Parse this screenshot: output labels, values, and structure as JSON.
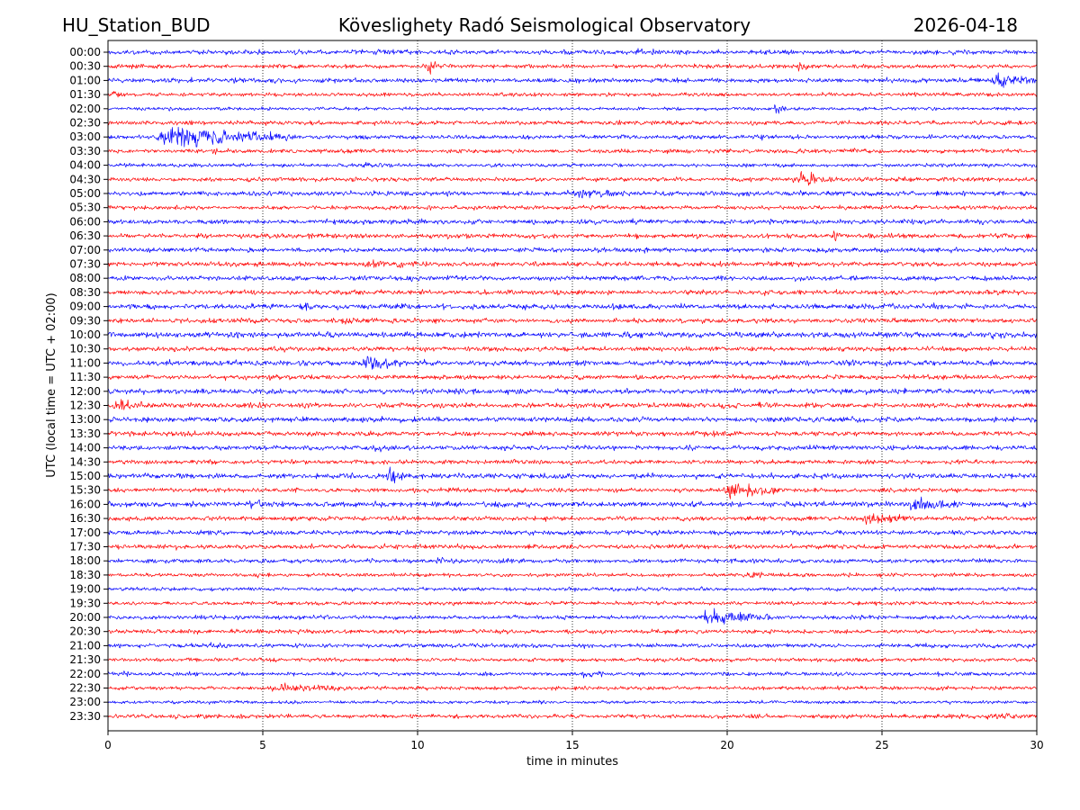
{
  "chart_data": {
    "type": "line",
    "title_left": "HU_Station_BUD",
    "title_center": "Köveslighety Radó Seismological Observatory",
    "title_right": "2026-04-18",
    "xlabel": "time in minutes",
    "ylabel": "UTC (local time = UTC + 02:00)",
    "xlim": [
      0,
      30
    ],
    "x_ticks": [
      0,
      5,
      10,
      15,
      20,
      25,
      30
    ],
    "grid": "vertical dotted",
    "trace_colors": [
      "#0000ff",
      "#ff0000"
    ],
    "rows": [
      "00:00",
      "00:30",
      "01:00",
      "01:30",
      "02:00",
      "02:30",
      "03:00",
      "03:30",
      "04:00",
      "04:30",
      "05:00",
      "05:30",
      "06:00",
      "06:30",
      "07:00",
      "07:30",
      "08:00",
      "08:30",
      "09:00",
      "09:30",
      "10:00",
      "10:30",
      "11:00",
      "11:30",
      "12:00",
      "12:30",
      "13:00",
      "13:30",
      "14:00",
      "14:30",
      "15:00",
      "15:30",
      "16:00",
      "16:30",
      "17:00",
      "17:30",
      "18:00",
      "18:30",
      "19:00",
      "19:30",
      "20:00",
      "20:30",
      "21:00",
      "21:30",
      "22:00",
      "22:30",
      "23:00",
      "23:30"
    ],
    "base_amplitude": [
      1.0,
      0.9,
      1.0,
      0.8,
      0.7,
      0.9,
      0.9,
      0.9,
      0.8,
      0.9,
      1.0,
      0.9,
      1.0,
      1.0,
      1.0,
      1.0,
      1.0,
      1.0,
      1.1,
      1.0,
      1.2,
      1.0,
      1.1,
      1.0,
      1.1,
      1.1,
      1.1,
      1.0,
      1.0,
      0.9,
      1.1,
      0.9,
      1.1,
      1.0,
      1.0,
      1.0,
      0.9,
      0.8,
      0.8,
      0.8,
      0.9,
      0.9,
      0.9,
      0.8,
      0.8,
      0.8,
      0.7,
      0.9
    ],
    "events": [
      {
        "row": "00:00",
        "start": 8.5,
        "duration": 1.0,
        "amplitude": 2.0
      },
      {
        "row": "00:00",
        "start": 17.0,
        "duration": 0.8,
        "amplitude": 2.0
      },
      {
        "row": "00:30",
        "start": 10.3,
        "duration": 0.3,
        "amplitude": 5.0
      },
      {
        "row": "00:30",
        "start": 22.2,
        "duration": 0.8,
        "amplitude": 2.2
      },
      {
        "row": "01:00",
        "start": 28.5,
        "duration": 1.5,
        "amplitude": 4.0
      },
      {
        "row": "01:30",
        "start": 0.1,
        "duration": 0.5,
        "amplitude": 1.8
      },
      {
        "row": "02:00",
        "start": 21.5,
        "duration": 0.5,
        "amplitude": 3.5
      },
      {
        "row": "03:00",
        "start": 1.5,
        "duration": 4.5,
        "amplitude": 5.5
      },
      {
        "row": "03:00",
        "start": 20.8,
        "duration": 0.5,
        "amplitude": 2.0
      },
      {
        "row": "03:30",
        "start": 3.3,
        "duration": 0.4,
        "amplitude": 2.0
      },
      {
        "row": "04:00",
        "start": 8.2,
        "duration": 0.8,
        "amplitude": 1.8
      },
      {
        "row": "04:30",
        "start": 22.1,
        "duration": 1.7,
        "amplitude": 3.8
      },
      {
        "row": "05:00",
        "start": 14.8,
        "duration": 2.2,
        "amplitude": 2.5
      },
      {
        "row": "06:30",
        "start": 23.4,
        "duration": 0.3,
        "amplitude": 4.0
      },
      {
        "row": "07:30",
        "start": 8.3,
        "duration": 1.5,
        "amplitude": 2.5
      },
      {
        "row": "09:00",
        "start": 6.2,
        "duration": 0.6,
        "amplitude": 3.0
      },
      {
        "row": "09:30",
        "start": 7.5,
        "duration": 0.8,
        "amplitude": 1.8
      },
      {
        "row": "10:00",
        "start": 28.5,
        "duration": 0.5,
        "amplitude": 3.0
      },
      {
        "row": "11:00",
        "start": 8.2,
        "duration": 1.4,
        "amplitude": 4.5
      },
      {
        "row": "12:00",
        "start": 11.3,
        "duration": 0.6,
        "amplitude": 2.0
      },
      {
        "row": "12:30",
        "start": 0.1,
        "duration": 1.0,
        "amplitude": 3.5
      },
      {
        "row": "14:00",
        "start": 8.5,
        "duration": 0.7,
        "amplitude": 2.2
      },
      {
        "row": "15:00",
        "start": 9.0,
        "duration": 0.6,
        "amplitude": 4.0
      },
      {
        "row": "15:30",
        "start": 19.8,
        "duration": 2.0,
        "amplitude": 4.5
      },
      {
        "row": "16:00",
        "start": 4.5,
        "duration": 1.5,
        "amplitude": 2.5
      },
      {
        "row": "16:00",
        "start": 25.8,
        "duration": 1.4,
        "amplitude": 4.8
      },
      {
        "row": "16:30",
        "start": 24.3,
        "duration": 1.6,
        "amplitude": 2.8
      },
      {
        "row": "18:00",
        "start": 10.5,
        "duration": 0.8,
        "amplitude": 1.8
      },
      {
        "row": "18:00",
        "start": 12.5,
        "duration": 1.0,
        "amplitude": 1.8
      },
      {
        "row": "18:30",
        "start": 20.5,
        "duration": 0.8,
        "amplitude": 2.2
      },
      {
        "row": "20:00",
        "start": 19.1,
        "duration": 2.3,
        "amplitude": 4.0
      },
      {
        "row": "21:00",
        "start": 3.2,
        "duration": 0.5,
        "amplitude": 1.8
      },
      {
        "row": "22:00",
        "start": 0.4,
        "duration": 0.3,
        "amplitude": 2.5
      },
      {
        "row": "22:00",
        "start": 15.2,
        "duration": 0.8,
        "amplitude": 2.2
      },
      {
        "row": "22:30",
        "start": 5.2,
        "duration": 2.8,
        "amplitude": 2.5
      },
      {
        "row": "23:30",
        "start": 28.3,
        "duration": 1.5,
        "amplitude": 2.0
      }
    ]
  }
}
